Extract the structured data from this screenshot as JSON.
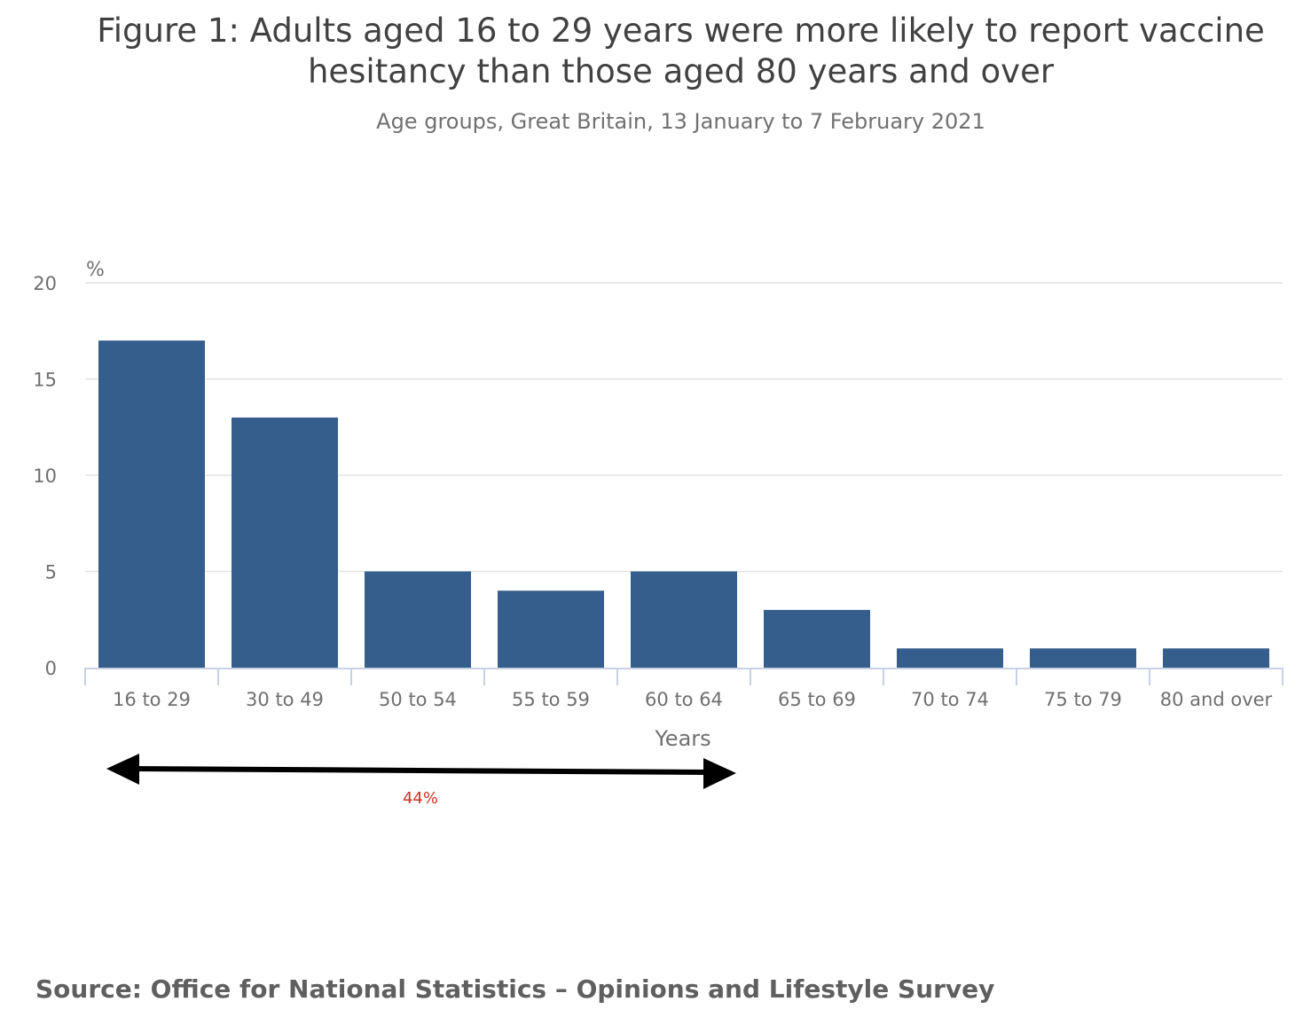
{
  "chart_data": {
    "type": "bar",
    "title": "Figure 1: Adults aged 16 to 29 years were more likely to report vaccine hesitancy than those aged 80 years and over",
    "subtitle": "Age groups, Great Britain, 13 January to 7 February 2021",
    "xlabel": "Years",
    "ylabel": "%",
    "ylim": [
      0,
      20
    ],
    "yticks": [
      0,
      5,
      10,
      15,
      20
    ],
    "grid": true,
    "categories": [
      "16 to 29",
      "30 to 49",
      "50 to 54",
      "55 to 59",
      "60 to 64",
      "65 to 69",
      "70 to 74",
      "75 to 79",
      "80 and over"
    ],
    "values": [
      17,
      13,
      5,
      4,
      5,
      3,
      1,
      1,
      1
    ],
    "bar_color": "#355e8d",
    "annotation": {
      "text": "44%",
      "color": "#cc3322",
      "from_category": "16 to 29",
      "to_category": "60 to 64"
    }
  },
  "title_lines": [
    "Figure 1: Adults aged 16 to 29 years were more likely to report vaccine",
    "hesitancy than those aged 80 years and over"
  ],
  "source": "Source: Office for National Statistics – Opinions and Lifestyle Survey"
}
